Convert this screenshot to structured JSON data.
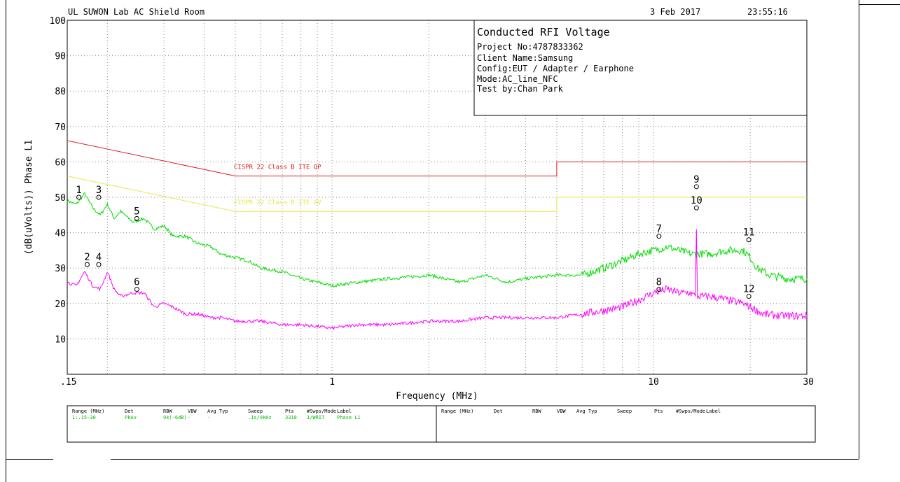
{
  "header": {
    "lab": "UL SUWON Lab AC Shield Room",
    "date": "3 Feb 2017",
    "time": "23:55:16"
  },
  "info_box": {
    "title": "Conducted RFI Voltage",
    "lines": [
      "Project No:4787833362",
      "Client Name:Samsung",
      "Config:EUT / Adapter / Earphone",
      "Mode:AC_line_NFC",
      "Test by:Chan Park"
    ]
  },
  "chart_data": {
    "type": "line",
    "xlabel": "Frequency (MHz)",
    "ylabel": "(dB(uVolts)) Phase L1",
    "x_scale": "log",
    "xlim": [
      0.15,
      30
    ],
    "ylim": [
      0,
      100
    ],
    "grid": true,
    "x_ticks": [
      ".15",
      "1",
      "10",
      "30"
    ],
    "y_ticks": [
      "10",
      "20",
      "30",
      "40",
      "50",
      "60",
      "70",
      "80",
      "90",
      "100"
    ],
    "limit_lines": [
      {
        "name": "CISPR 22 Class B ITE QP",
        "color": "#e02020",
        "points": [
          [
            0.15,
            66
          ],
          [
            0.5,
            56
          ],
          [
            5,
            56
          ],
          [
            5,
            60
          ],
          [
            30,
            60
          ]
        ]
      },
      {
        "name": "CISPR 22 Class B ITE AV",
        "color": "#e8e840",
        "points": [
          [
            0.15,
            56
          ],
          [
            0.5,
            46
          ],
          [
            5,
            46
          ],
          [
            5,
            50
          ],
          [
            30,
            50
          ]
        ]
      }
    ],
    "series": [
      {
        "color": "#00dd00",
        "points": [
          [
            0.15,
            49
          ],
          [
            0.16,
            48
          ],
          [
            0.17,
            51
          ],
          [
            0.18,
            47
          ],
          [
            0.19,
            45
          ],
          [
            0.2,
            48
          ],
          [
            0.21,
            44
          ],
          [
            0.22,
            46
          ],
          [
            0.24,
            43
          ],
          [
            0.26,
            44
          ],
          [
            0.28,
            41
          ],
          [
            0.3,
            42
          ],
          [
            0.32,
            39
          ],
          [
            0.35,
            39
          ],
          [
            0.38,
            37
          ],
          [
            0.42,
            36
          ],
          [
            0.45,
            34
          ],
          [
            0.5,
            33
          ],
          [
            0.55,
            32
          ],
          [
            0.6,
            30
          ],
          [
            0.7,
            29
          ],
          [
            0.8,
            27
          ],
          [
            0.9,
            26
          ],
          [
            1.0,
            25
          ],
          [
            1.2,
            26
          ],
          [
            1.5,
            27
          ],
          [
            2.0,
            28
          ],
          [
            2.5,
            26
          ],
          [
            3.0,
            28
          ],
          [
            3.5,
            26
          ],
          [
            4.0,
            27
          ],
          [
            5.0,
            28
          ],
          [
            6.0,
            28
          ],
          [
            7.0,
            30
          ],
          [
            8.0,
            32
          ],
          [
            9.0,
            34
          ],
          [
            10.0,
            35
          ],
          [
            11.0,
            36
          ],
          [
            12.0,
            35
          ],
          [
            13.0,
            34
          ],
          [
            15.0,
            34
          ],
          [
            17.0,
            35
          ],
          [
            19.0,
            35
          ],
          [
            20.0,
            33
          ],
          [
            21.0,
            30
          ],
          [
            23.0,
            28
          ],
          [
            26.0,
            27
          ],
          [
            30.0,
            27
          ]
        ]
      },
      {
        "color": "#ff00ff",
        "points": [
          [
            0.15,
            26
          ],
          [
            0.16,
            25
          ],
          [
            0.17,
            29
          ],
          [
            0.18,
            25
          ],
          [
            0.19,
            24
          ],
          [
            0.2,
            29
          ],
          [
            0.21,
            24
          ],
          [
            0.22,
            22
          ],
          [
            0.24,
            23
          ],
          [
            0.26,
            23
          ],
          [
            0.28,
            19
          ],
          [
            0.3,
            20
          ],
          [
            0.32,
            19
          ],
          [
            0.35,
            17
          ],
          [
            0.38,
            17
          ],
          [
            0.42,
            16
          ],
          [
            0.45,
            16
          ],
          [
            0.5,
            15
          ],
          [
            0.6,
            15
          ],
          [
            0.7,
            14
          ],
          [
            0.8,
            14
          ],
          [
            0.9,
            13.5
          ],
          [
            1.0,
            13
          ],
          [
            1.2,
            14
          ],
          [
            1.5,
            14
          ],
          [
            2.0,
            15
          ],
          [
            2.5,
            15
          ],
          [
            3.0,
            16
          ],
          [
            4.0,
            16
          ],
          [
            5.0,
            16
          ],
          [
            6.0,
            17
          ],
          [
            7.0,
            18
          ],
          [
            8.0,
            19
          ],
          [
            9.0,
            21
          ],
          [
            10.0,
            23
          ],
          [
            11.0,
            24
          ],
          [
            12.0,
            23
          ],
          [
            13.0,
            23
          ],
          [
            13.5,
            22
          ],
          [
            13.6,
            41
          ],
          [
            13.7,
            22
          ],
          [
            15.0,
            22
          ],
          [
            17.0,
            21
          ],
          [
            19.0,
            20
          ],
          [
            20.0,
            19
          ],
          [
            22.0,
            17
          ],
          [
            25.0,
            16.5
          ],
          [
            30.0,
            16.5
          ]
        ]
      }
    ],
    "markers": [
      {
        "label": "1",
        "x": 0.163,
        "y": 50
      },
      {
        "label": "2",
        "x": 0.173,
        "y": 31
      },
      {
        "label": "3",
        "x": 0.188,
        "y": 50
      },
      {
        "label": "4",
        "x": 0.188,
        "y": 31
      },
      {
        "label": "5",
        "x": 0.247,
        "y": 44
      },
      {
        "label": "6",
        "x": 0.247,
        "y": 24
      },
      {
        "label": "7",
        "x": 10.4,
        "y": 39
      },
      {
        "label": "8",
        "x": 10.4,
        "y": 24
      },
      {
        "label": "9",
        "x": 13.6,
        "y": 53
      },
      {
        "label": "10",
        "x": 13.6,
        "y": 47
      },
      {
        "label": "11",
        "x": 19.8,
        "y": 38
      },
      {
        "label": "12",
        "x": 19.8,
        "y": 22
      }
    ]
  },
  "settings_table": {
    "headers": [
      "Range (MHz)",
      "Det",
      "RBW",
      "VBW",
      "Avg Typ",
      "Sweep",
      "Pts",
      "#Swps/Mode",
      "Label"
    ],
    "row": [
      "1:.15-30",
      "PkAv",
      "9k(-6dB)",
      "-",
      "-",
      ".1s/9kHz",
      "3318",
      "1/WRIT",
      "Phase L1"
    ]
  }
}
